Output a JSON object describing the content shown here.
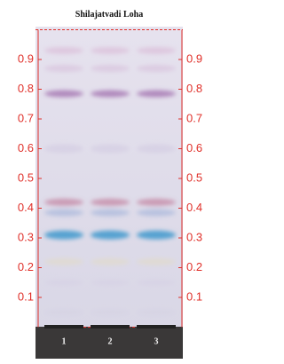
{
  "title": "Shilajatvadi Loha",
  "scale": {
    "ticks": [
      0.1,
      0.2,
      0.3,
      0.4,
      0.5,
      0.6,
      0.7,
      0.8,
      0.9
    ]
  },
  "lanes": [
    "1",
    "2",
    "3"
  ]
}
